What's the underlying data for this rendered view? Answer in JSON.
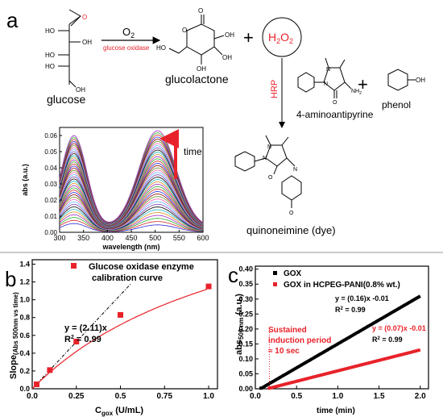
{
  "panel_a": {
    "letter": "a",
    "arrow_top": "O",
    "arrow_top_sub": "2",
    "arrow_bottom": "glucose oxidase",
    "glucose_label": "glucose",
    "glucolactone_label": "glucolactone",
    "plus1": "+",
    "h2o2": "H",
    "h2o2_sub1": "2",
    "h2o2_o": "O",
    "h2o2_sub2": "2",
    "hrp": "HRP",
    "aap_label": "4-aminoantipyrine",
    "plus2": "+",
    "phenol_label": "phenol",
    "dye_label": "quinoneimine (dye)",
    "time_label": "time",
    "atoms": {
      "o": "O",
      "oh": "OH",
      "ho": "HO",
      "nh2": "NH",
      "nh2_sub": "2",
      "n": "N"
    }
  },
  "panel_b": {
    "letter": "b",
    "legend": "Glucose oxidase enzyme",
    "legend2": "calibration curve",
    "equation": "y = (2.11)x",
    "r2": "R",
    "r2_val": " = 0.99",
    "ylabel_main": "Slope",
    "ylabel_sub": "(Abs 500nm vs time)",
    "xlabel_main": "C",
    "xlabel_sub": "gox",
    "xlabel_unit": " (U/mL)"
  },
  "panel_c": {
    "letter": "c",
    "legend1": "GOX",
    "legend2": "GOX in HCPEG-PANI(0.8% wt.)",
    "eq1": "y = (0.16)x -0.01",
    "eq1_r2": " = 0.99",
    "eq2": "y = (0.07)x -0.01",
    "eq2_r2": " = 0.99",
    "induction1": "Sustained",
    "induction2": "induction period",
    "induction3": "≈ 10 sec",
    "ylabel_main": "abs",
    "ylabel_sub": "500 nm",
    "ylabel_unit": " (a.u.)",
    "xlabel": "time (min)"
  },
  "chart_data": [
    {
      "type": "line",
      "panel": "a-inset",
      "xlabel": "wavelength (nm)",
      "ylabel": "abs (a.u.)",
      "xlim": [
        300,
        600
      ],
      "ylim": [
        0,
        0.065
      ],
      "x_ticks": [
        300,
        350,
        400,
        450,
        500,
        550,
        600
      ],
      "y_ticks": [
        0.0,
        0.01,
        0.02,
        0.03,
        0.04,
        0.05,
        0.06
      ],
      "peaks_nm": [
        330,
        505
      ],
      "valley_nm": 410,
      "max_peak1": 0.057,
      "max_peak2": 0.06,
      "curve_count": 40
    },
    {
      "type": "scatter",
      "panel": "b",
      "x": [
        0.025,
        0.1,
        0.25,
        0.5,
        1.0
      ],
      "y": [
        0.05,
        0.21,
        0.53,
        0.83,
        1.15
      ],
      "fit_line": {
        "slope": 2.11,
        "x_range": [
          0,
          0.56
        ]
      },
      "xlim": [
        0,
        1.05
      ],
      "ylim": [
        0,
        1.45
      ],
      "x_ticks": [
        0.0,
        0.25,
        0.5,
        0.75,
        1.0
      ],
      "y_ticks": [
        0.0,
        0.2,
        0.4,
        0.6,
        0.8,
        1.0,
        1.2,
        1.4
      ]
    },
    {
      "type": "scatter",
      "panel": "c",
      "series": [
        {
          "name": "GOX",
          "slope": 0.16,
          "intercept": -0.01,
          "x_range": [
            0.05,
            2.0
          ],
          "color": "#000000"
        },
        {
          "name": "GOX in HCPEG-PANI(0.8% wt.)",
          "slope": 0.07,
          "intercept": -0.01,
          "x_range": [
            0.15,
            2.0
          ],
          "color": "#e8222a"
        }
      ],
      "xlim": [
        0,
        2.1
      ],
      "ylim": [
        0,
        0.41
      ],
      "x_ticks": [
        0.0,
        0.5,
        1.0,
        1.5,
        2.0
      ],
      "y_ticks": [
        0.0,
        0.05,
        0.1,
        0.15,
        0.2,
        0.25,
        0.3,
        0.35,
        0.4
      ],
      "induction_time_min": 0.17
    }
  ]
}
